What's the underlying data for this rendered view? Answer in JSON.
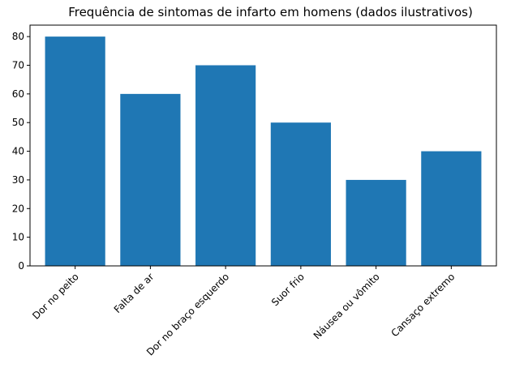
{
  "chart_data": {
    "type": "bar",
    "title": "Frequência de sintomas de infarto em homens (dados ilustrativos)",
    "xlabel": "",
    "ylabel": "",
    "categories": [
      "Dor no peito",
      "Falta de ar",
      "Dor no braço esquerdo",
      "Suor frio",
      "Náusea ou vômito",
      "Cansaço extremo"
    ],
    "values": [
      80,
      60,
      70,
      50,
      30,
      40
    ],
    "ylim": [
      0,
      84
    ],
    "yticks": [
      0,
      10,
      20,
      30,
      40,
      50,
      60,
      70,
      80
    ],
    "bar_color": "#1f77b4",
    "grid": false,
    "xtick_rotation_deg": 45
  }
}
